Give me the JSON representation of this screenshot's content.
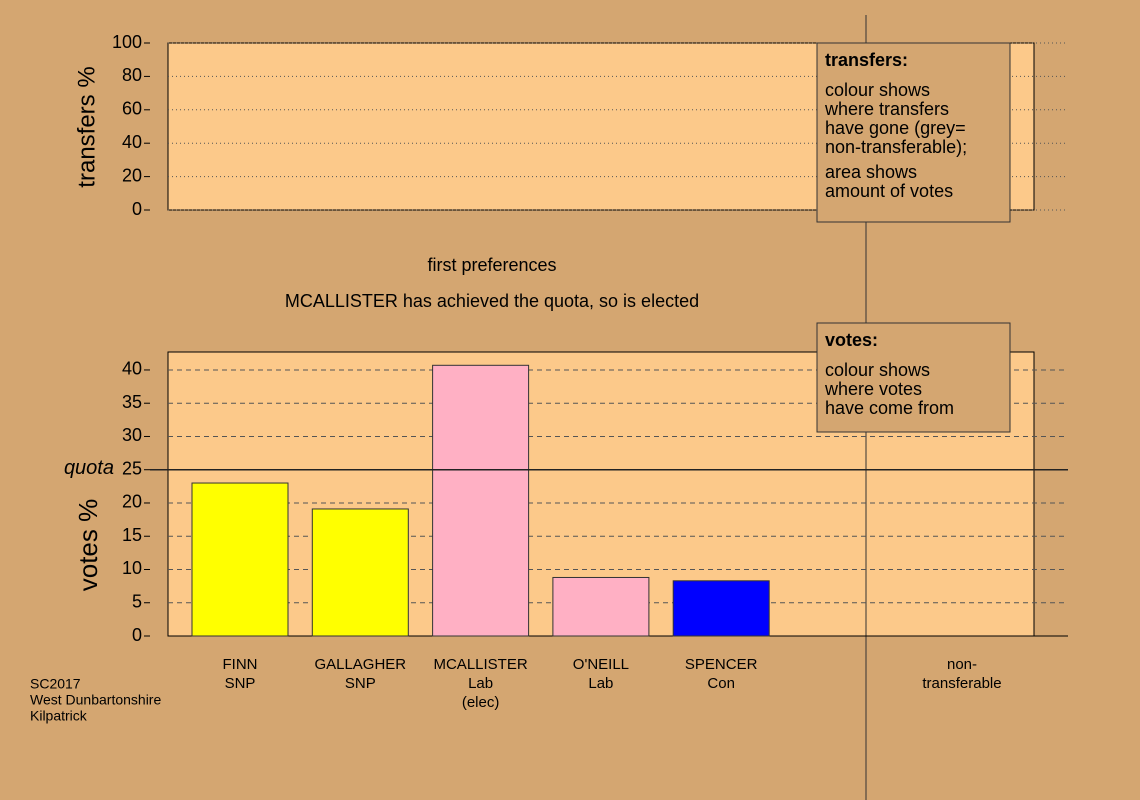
{
  "chart_data": [
    {
      "type": "transfers",
      "ylabel": "transfers %",
      "ylim": [
        0,
        100
      ],
      "yticks": [
        0,
        20,
        40,
        60,
        80,
        100
      ],
      "legend_title": "transfers:",
      "legend_lines": [
        "colour shows",
        "where transfers",
        "have gone (grey=",
        "non-transferable);"
      ],
      "legend_lines2": [
        "area shows",
        "amount of votes"
      ]
    },
    {
      "type": "bar",
      "title": "first preferences",
      "subtitle": "MCALLISTER has achieved the quota, so is elected",
      "ylabel": "votes %",
      "categories": [
        [
          "FINN",
          "SNP"
        ],
        [
          "GALLAGHER",
          "SNP"
        ],
        [
          "MCALLISTER",
          "Lab",
          "(elec)"
        ],
        [
          "O'NEILL",
          "Lab"
        ],
        [
          "SPENCER",
          "Con"
        ]
      ],
      "values": [
        23.0,
        19.1,
        40.7,
        8.8,
        8.3
      ],
      "colors": [
        "#ffff00",
        "#ffff00",
        "#ffb0c4",
        "#ffb0c4",
        "#0000ff"
      ],
      "ylim": [
        0,
        42.7
      ],
      "yticks": [
        0,
        5,
        10,
        15,
        20,
        25,
        30,
        35,
        40
      ],
      "quota": 25,
      "quota_label": "quota",
      "extra_category": [
        "non-",
        "transferable"
      ],
      "legend_title": "votes:",
      "legend_lines": [
        "colour shows",
        "where votes",
        "have come from"
      ]
    }
  ],
  "footnote": [
    "SC2017",
    "West Dunbartonshire",
    "Kilpatrick"
  ]
}
